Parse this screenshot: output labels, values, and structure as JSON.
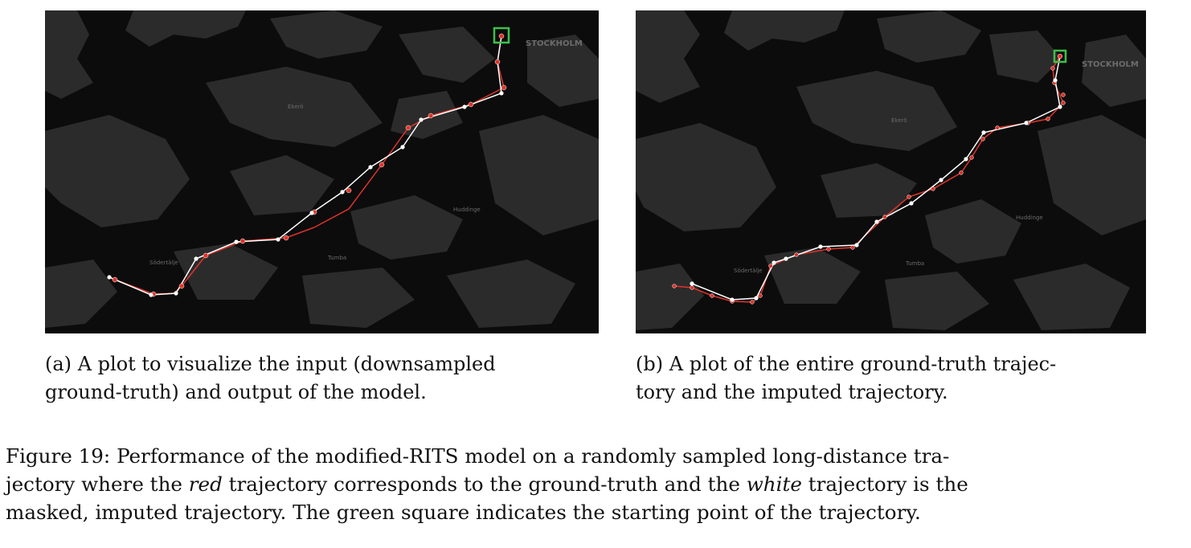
{
  "map_labels": {
    "stockholm": "STOCKHOLM",
    "ekero": "Ekerö",
    "huddinge": "Huddinge",
    "sodertalje": "Södertälje",
    "tumba": "Tumba"
  },
  "subcaption_a": {
    "label": "(a)",
    "line1": "A plot to visualize the input (downsampled",
    "line2": "ground-truth) and output of the model."
  },
  "subcaption_b": {
    "label": "(b)",
    "line1": "A plot of the entire ground-truth trajec-",
    "line2": "tory and the imputed trajectory."
  },
  "figure_caption": {
    "label": "Figure 19:",
    "part1": "Performance of the modified-RITS model on a randomly sampled long-distance tra-",
    "part2": "jectory where the ",
    "red_word": "red",
    "part3": " trajectory corresponds to the ground-truth and the ",
    "white_word": "white",
    "part4": " trajectory is the",
    "part5": "masked, imputed trajectory. The green square indicates the starting point of the trajectory."
  },
  "colors": {
    "map_background": "#0c0c0c",
    "land": "#2b2b2b",
    "ground_truth": "#e0332a",
    "imputed": "#ffffff",
    "start_marker": "#3fbf4a"
  }
}
